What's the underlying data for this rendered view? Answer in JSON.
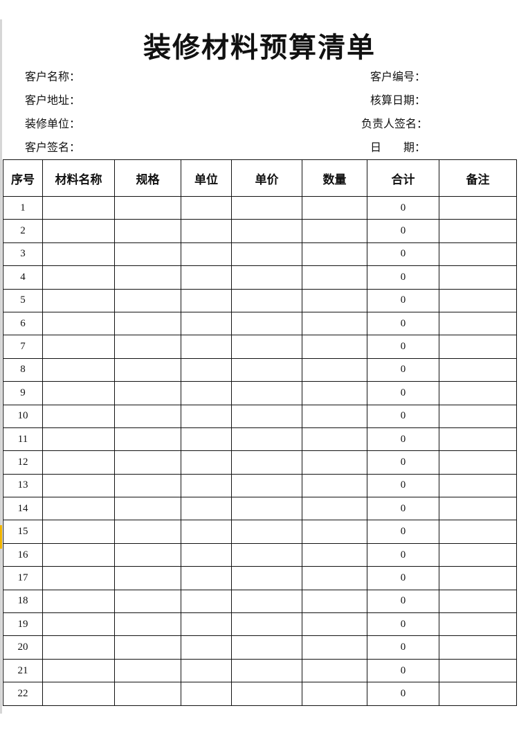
{
  "title": "装修材料预算清单",
  "info_left": [
    "客户名称：",
    "客户地址：",
    "装修单位：",
    "客户签名："
  ],
  "info_right": [
    "客户编号：",
    "核算日期：",
    "负责人签名：",
    "日　　期："
  ],
  "columns": [
    "序号",
    "材料名称",
    "规格",
    "单位",
    "单价",
    "数量",
    "合计",
    "备注"
  ],
  "rows": [
    {
      "no": "1",
      "total": "0"
    },
    {
      "no": "2",
      "total": "0"
    },
    {
      "no": "3",
      "total": "0"
    },
    {
      "no": "4",
      "total": "0"
    },
    {
      "no": "5",
      "total": "0"
    },
    {
      "no": "6",
      "total": "0"
    },
    {
      "no": "7",
      "total": "0"
    },
    {
      "no": "8",
      "total": "0"
    },
    {
      "no": "9",
      "total": "0"
    },
    {
      "no": "10",
      "total": "0"
    },
    {
      "no": "11",
      "total": "0"
    },
    {
      "no": "12",
      "total": "0"
    },
    {
      "no": "13",
      "total": "0"
    },
    {
      "no": "14",
      "total": "0"
    },
    {
      "no": "15",
      "total": "0"
    },
    {
      "no": "16",
      "total": "0"
    },
    {
      "no": "17",
      "total": "0"
    },
    {
      "no": "18",
      "total": "0"
    },
    {
      "no": "19",
      "total": "0"
    },
    {
      "no": "20",
      "total": "0"
    },
    {
      "no": "21",
      "total": "0"
    },
    {
      "no": "22",
      "total": "0"
    }
  ]
}
